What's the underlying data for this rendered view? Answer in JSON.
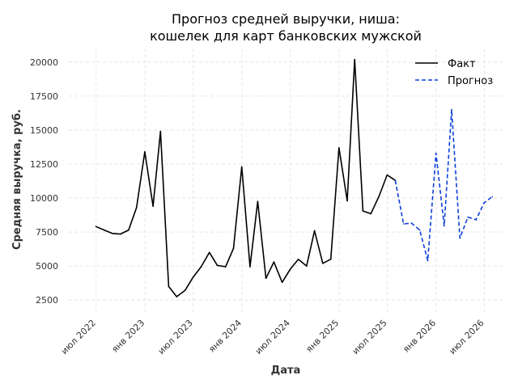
{
  "chart_data": {
    "type": "line",
    "title_line1": "Прогноз средней выручки, ниша:",
    "title_line2": "кошелек для карт банковских мужской",
    "xlabel": "Дата",
    "ylabel": "Средняя выручка, руб.",
    "ylim": [
      1500,
      21000
    ],
    "xlim": [
      "2022-03-20",
      "2026-09-20"
    ],
    "yticks": [
      2500,
      5000,
      7500,
      10000,
      12500,
      15000,
      17500,
      20000
    ],
    "ytick_labels": [
      "2500",
      "5000",
      "7500",
      "10000",
      "12500",
      "15000",
      "17500",
      "20000"
    ],
    "xticks": [
      "2022-07-01",
      "2023-01-01",
      "2023-07-01",
      "2024-01-01",
      "2024-07-01",
      "2025-01-01",
      "2025-07-01",
      "2026-01-01",
      "2026-07-01"
    ],
    "xtick_labels": [
      "июл 2022",
      "янв 2023",
      "июл 2023",
      "янв 2024",
      "июл 2024",
      "янв 2025",
      "июл 2025",
      "янв 2026",
      "июл 2026"
    ],
    "grid": true,
    "legend_position": "top-right",
    "series": [
      {
        "name": "Факт",
        "color": "#000000",
        "style": "solid",
        "points": [
          {
            "x": "2022-06-30",
            "y": 7900
          },
          {
            "x": "2022-07-31",
            "y": 7650
          },
          {
            "x": "2022-08-31",
            "y": 7400
          },
          {
            "x": "2022-09-30",
            "y": 7350
          },
          {
            "x": "2022-10-31",
            "y": 7650
          },
          {
            "x": "2022-11-30",
            "y": 9300
          },
          {
            "x": "2022-12-31",
            "y": 13400
          },
          {
            "x": "2023-01-31",
            "y": 9400
          },
          {
            "x": "2023-02-28",
            "y": 14900
          },
          {
            "x": "2023-03-31",
            "y": 3500
          },
          {
            "x": "2023-04-30",
            "y": 2750
          },
          {
            "x": "2023-05-31",
            "y": 3200
          },
          {
            "x": "2023-06-30",
            "y": 4150
          },
          {
            "x": "2023-07-31",
            "y": 4950
          },
          {
            "x": "2023-08-31",
            "y": 6000
          },
          {
            "x": "2023-09-30",
            "y": 5050
          },
          {
            "x": "2023-10-31",
            "y": 4950
          },
          {
            "x": "2023-11-30",
            "y": 6300
          },
          {
            "x": "2023-12-31",
            "y": 12300
          },
          {
            "x": "2024-01-31",
            "y": 4950
          },
          {
            "x": "2024-02-29",
            "y": 9750
          },
          {
            "x": "2024-03-31",
            "y": 4100
          },
          {
            "x": "2024-04-30",
            "y": 5300
          },
          {
            "x": "2024-05-31",
            "y": 3800
          },
          {
            "x": "2024-06-30",
            "y": 4750
          },
          {
            "x": "2024-07-31",
            "y": 5500
          },
          {
            "x": "2024-08-31",
            "y": 5000
          },
          {
            "x": "2024-09-30",
            "y": 7600
          },
          {
            "x": "2024-10-31",
            "y": 5200
          },
          {
            "x": "2024-11-30",
            "y": 5500
          },
          {
            "x": "2024-12-31",
            "y": 13700
          },
          {
            "x": "2025-01-31",
            "y": 9800
          },
          {
            "x": "2025-02-28",
            "y": 20200
          },
          {
            "x": "2025-03-31",
            "y": 9050
          },
          {
            "x": "2025-04-30",
            "y": 8850
          },
          {
            "x": "2025-05-31",
            "y": 10150
          },
          {
            "x": "2025-06-30",
            "y": 11700
          },
          {
            "x": "2025-07-31",
            "y": 11300
          }
        ]
      },
      {
        "name": "Прогноз",
        "color": "#0b3fd9",
        "style": "dashed",
        "points": [
          {
            "x": "2025-07-31",
            "y": 11300
          },
          {
            "x": "2025-08-31",
            "y": 8100
          },
          {
            "x": "2025-09-30",
            "y": 8150
          },
          {
            "x": "2025-10-31",
            "y": 7650
          },
          {
            "x": "2025-11-30",
            "y": 5400
          },
          {
            "x": "2025-12-31",
            "y": 13300
          },
          {
            "x": "2026-01-31",
            "y": 7950
          },
          {
            "x": "2026-02-28",
            "y": 16500
          },
          {
            "x": "2026-03-31",
            "y": 7050
          },
          {
            "x": "2026-04-30",
            "y": 8600
          },
          {
            "x": "2026-05-31",
            "y": 8400
          },
          {
            "x": "2026-06-30",
            "y": 9650
          },
          {
            "x": "2026-07-31",
            "y": 10100
          }
        ]
      }
    ]
  }
}
